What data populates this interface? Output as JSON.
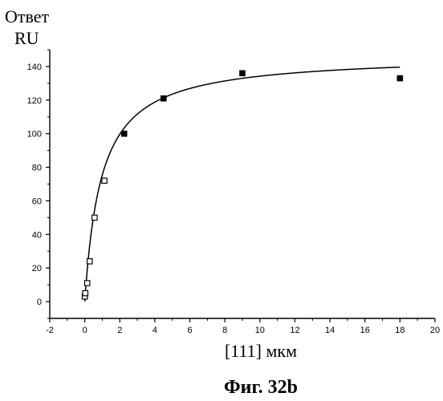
{
  "chart_data": {
    "type": "scatter",
    "ylabel_lines": [
      "Ответ",
      "RU"
    ],
    "xlabel": "[111] мкм",
    "caption": "Фиг. 32b",
    "xlim": [
      -2,
      20
    ],
    "ylim": [
      -10,
      150
    ],
    "x_ticks": [
      -2,
      0,
      2,
      4,
      6,
      8,
      10,
      12,
      14,
      16,
      18,
      20
    ],
    "y_ticks": [
      0,
      20,
      40,
      60,
      80,
      100,
      120,
      140
    ],
    "grid": false,
    "series": [
      {
        "values": [
          {
            "x": 0.0,
            "y": 3
          },
          {
            "x": 0.03,
            "y": 5
          },
          {
            "x": 0.14,
            "y": 11
          },
          {
            "x": 0.28,
            "y": 24
          },
          {
            "x": 0.56,
            "y": 50
          },
          {
            "x": 1.12,
            "y": 72
          },
          {
            "x": 2.25,
            "y": 100
          },
          {
            "x": 4.5,
            "y": 121
          },
          {
            "x": 9.0,
            "y": 136
          },
          {
            "x": 18.0,
            "y": 133
          }
        ]
      }
    ],
    "fit_curve": {
      "type": "binding-hyperbola",
      "ymax": 147,
      "kd": 0.95
    }
  }
}
